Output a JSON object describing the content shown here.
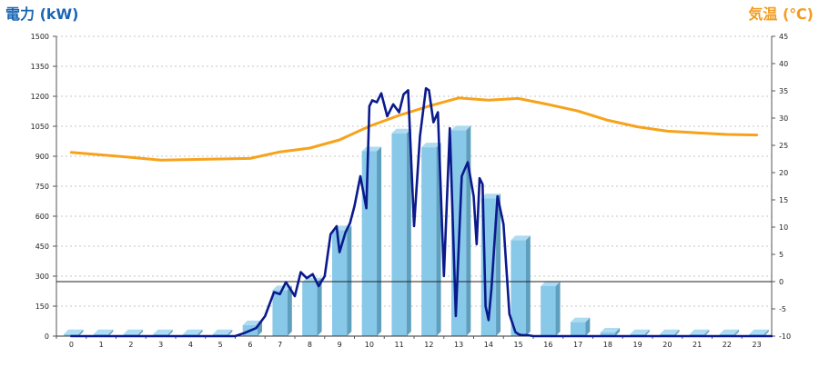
{
  "chart_data": {
    "type": "bar+line",
    "left_axis": {
      "title": "電力 (kW)",
      "ylim": [
        0,
        1500
      ],
      "ticks": [
        0,
        150,
        300,
        450,
        600,
        750,
        900,
        1050,
        1200,
        1350,
        1500
      ],
      "color": "#1a66b3"
    },
    "right_axis": {
      "title": "気温 (℃)",
      "ylim": [
        -10,
        45
      ],
      "ticks": [
        -10,
        -5,
        0,
        5,
        10,
        15,
        20,
        25,
        30,
        35,
        40,
        45
      ],
      "color": "#f29c1f"
    },
    "x_axis": {
      "categories": [
        "0",
        "1",
        "2",
        "3",
        "4",
        "5",
        "6",
        "7",
        "8",
        "9",
        "10",
        "11",
        "12",
        "13",
        "14",
        "15",
        "16",
        "17",
        "18",
        "19",
        "20",
        "21",
        "22",
        "23"
      ]
    },
    "grid": true,
    "bars": {
      "name": "hourly_power",
      "color": "#88c8e8",
      "values": [
        10,
        10,
        10,
        10,
        10,
        10,
        55,
        230,
        270,
        530,
        925,
        1015,
        945,
        1030,
        690,
        480,
        250,
        70,
        18,
        10,
        10,
        10,
        10,
        10
      ]
    },
    "power_line": {
      "color": "#0a1a8c",
      "x": [
        0,
        5.5,
        5.8,
        6.2,
        6.5,
        6.8,
        7.0,
        7.2,
        7.5,
        7.7,
        7.9,
        8.1,
        8.3,
        8.5,
        8.7,
        8.9,
        9.0,
        9.2,
        9.35,
        9.5,
        9.7,
        9.9,
        10.0,
        10.1,
        10.25,
        10.4,
        10.6,
        10.8,
        11.0,
        11.15,
        11.3,
        11.5,
        11.7,
        11.9,
        12.0,
        12.15,
        12.3,
        12.5,
        12.7,
        12.9,
        13.1,
        13.3,
        13.5,
        13.6,
        13.7,
        13.8,
        13.9,
        14.0,
        14.1,
        14.3,
        14.5,
        14.7,
        14.9,
        15.0,
        15.1,
        15.3,
        15.5,
        15.6,
        15.7,
        15.9,
        16.1,
        16.3,
        16.5,
        16.7,
        16.8,
        17.0,
        17.3,
        17.6,
        18.0,
        23.5
      ],
      "y": [
        0,
        0,
        15,
        40,
        100,
        220,
        210,
        270,
        200,
        320,
        290,
        310,
        250,
        300,
        510,
        550,
        420,
        520,
        565,
        650,
        800,
        640,
        1150,
        1180,
        1170,
        1215,
        1100,
        1160,
        1120,
        1210,
        1230,
        550,
        1000,
        1240,
        1230,
        1070,
        1120,
        300,
        1040,
        100,
        800,
        870,
        700,
        460,
        790,
        760,
        150,
        80,
        240,
        700,
        560,
        110,
        20,
        10,
        5,
        5,
        0,
        0,
        0,
        0,
        0,
        0,
        0,
        0,
        0,
        0,
        0,
        0,
        0,
        0
      ]
    },
    "temp_line": {
      "color": "#f7a21b",
      "x": [
        0,
        2,
        3,
        5,
        6,
        7,
        8,
        9,
        10,
        11,
        12,
        13,
        14,
        15,
        16,
        17,
        18,
        19,
        20,
        21,
        22,
        23
      ],
      "y": [
        23.7,
        22.8,
        22.3,
        22.5,
        22.6,
        23.8,
        24.5,
        26,
        28.5,
        30.5,
        32.2,
        33.7,
        33.3,
        33.6,
        32.5,
        31.3,
        29.6,
        28.4,
        27.6,
        27.3,
        27.0,
        26.9
      ]
    }
  }
}
